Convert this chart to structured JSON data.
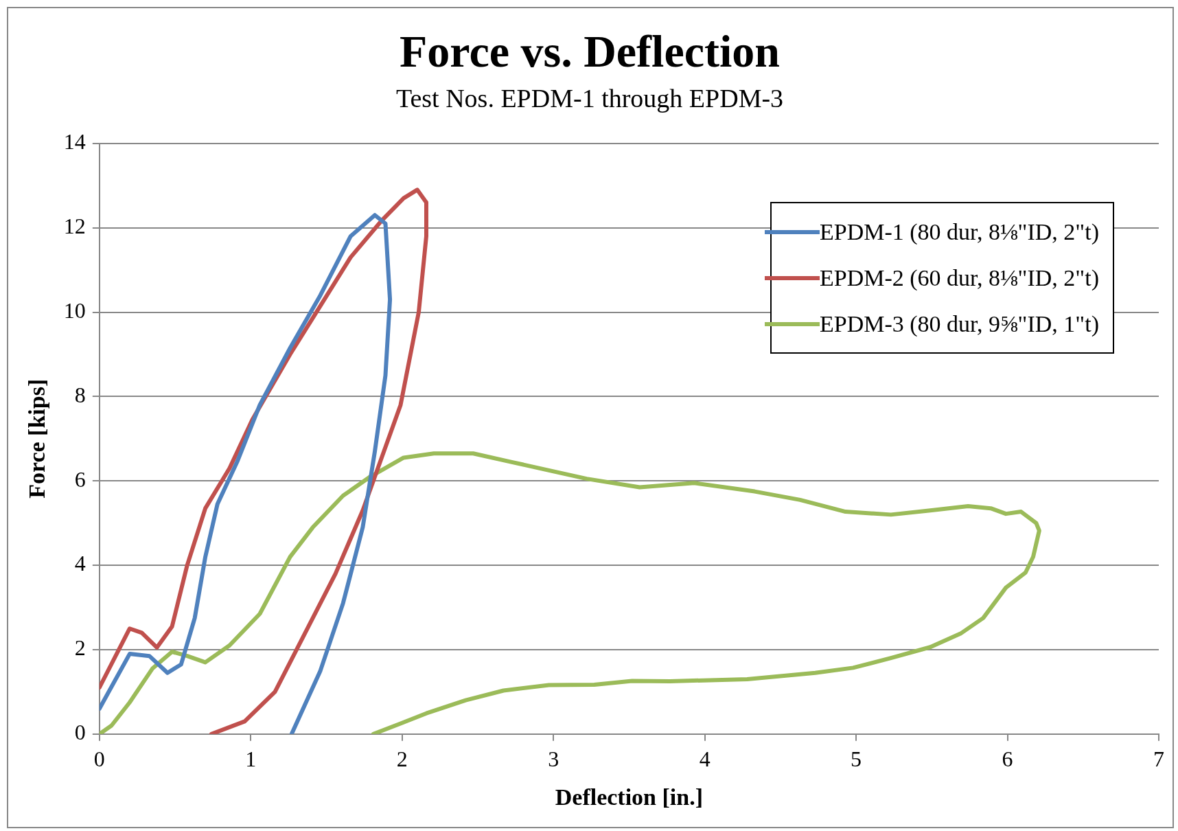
{
  "chart_data": {
    "type": "line",
    "title": "Force vs. Deflection",
    "subtitle": "Test Nos. EPDM-1 through EPDM-3",
    "xlabel": "Deflection [in.]",
    "ylabel": "Force [kips]",
    "xlim": [
      0,
      7
    ],
    "xticks": [
      0,
      1,
      2,
      3,
      4,
      5,
      6,
      7
    ],
    "ylim": [
      0,
      14
    ],
    "yticks": [
      0,
      2,
      4,
      6,
      8,
      10,
      12,
      14
    ],
    "grid": "y",
    "legend": "top right",
    "marker": "none",
    "line_style": "solid",
    "series": [
      {
        "name": "EPDM-1 (80 dur, 8⅛\"ID, 2\"t)",
        "color": "#4f81bd",
        "x": [
          0,
          0.2,
          0.33,
          0.45,
          0.54,
          0.63,
          0.7,
          0.78,
          0.91,
          1.06,
          1.26,
          1.46,
          1.66,
          1.82,
          1.89,
          1.92,
          1.89,
          1.82,
          1.74,
          1.61,
          1.46,
          1.27
        ],
        "values": [
          0.6,
          1.9,
          1.85,
          1.45,
          1.65,
          2.75,
          4.2,
          5.45,
          6.45,
          7.8,
          9.15,
          10.4,
          11.8,
          12.3,
          12.1,
          10.3,
          8.5,
          6.7,
          4.9,
          3.1,
          1.5,
          0
        ]
      },
      {
        "name": "EPDM-2 (60 dur, 8⅛\"ID, 2\"t)",
        "color": "#c0504d",
        "x": [
          0,
          0.2,
          0.28,
          0.38,
          0.48,
          0.58,
          0.7,
          0.86,
          1.01,
          1.26,
          1.46,
          1.66,
          1.86,
          2.01,
          2.1,
          2.16,
          2.16,
          2.11,
          1.99,
          1.86,
          1.74,
          1.56,
          1.36,
          1.16,
          0.96,
          0.74
        ],
        "values": [
          1.1,
          2.5,
          2.4,
          2.05,
          2.55,
          4,
          5.35,
          6.3,
          7.45,
          9,
          10.15,
          11.3,
          12.15,
          12.7,
          12.9,
          12.6,
          11.8,
          10,
          7.8,
          6.5,
          5.3,
          3.8,
          2.4,
          1,
          0.3,
          0
        ]
      },
      {
        "name": "EPDM-3 (80 dur, 9⅝\"ID, 1\"t)",
        "color": "#9bbb59",
        "x": [
          0,
          0.08,
          0.2,
          0.35,
          0.48,
          0.58,
          0.7,
          0.86,
          1.06,
          1.26,
          1.41,
          1.61,
          1.79,
          2.01,
          2.21,
          2.47,
          2.72,
          2.97,
          3.22,
          3.57,
          3.93,
          4.33,
          4.63,
          4.93,
          5.23,
          5.49,
          5.74,
          5.89,
          5.99,
          6.09,
          6.19,
          6.21,
          6.17,
          6.12,
          5.99,
          5.84,
          5.69,
          5.49,
          5.23,
          4.98,
          4.73,
          4.28,
          3.77,
          3.52,
          3.27,
          2.97,
          2.67,
          2.42,
          2.16,
          1.99,
          1.81
        ],
        "values": [
          0,
          0.2,
          0.75,
          1.55,
          1.95,
          1.85,
          1.7,
          2.1,
          2.85,
          4.2,
          4.9,
          5.65,
          6.1,
          6.55,
          6.65,
          6.65,
          6.45,
          6.25,
          6.05,
          5.85,
          5.95,
          5.75,
          5.55,
          5.27,
          5.2,
          5.3,
          5.4,
          5.35,
          5.22,
          5.27,
          5,
          4.82,
          4.2,
          3.83,
          3.47,
          2.75,
          2.38,
          2.06,
          1.8,
          1.57,
          1.45,
          1.3,
          1.25,
          1.26,
          1.17,
          1.16,
          1.03,
          0.8,
          0.49,
          0.25,
          0
        ]
      }
    ]
  }
}
